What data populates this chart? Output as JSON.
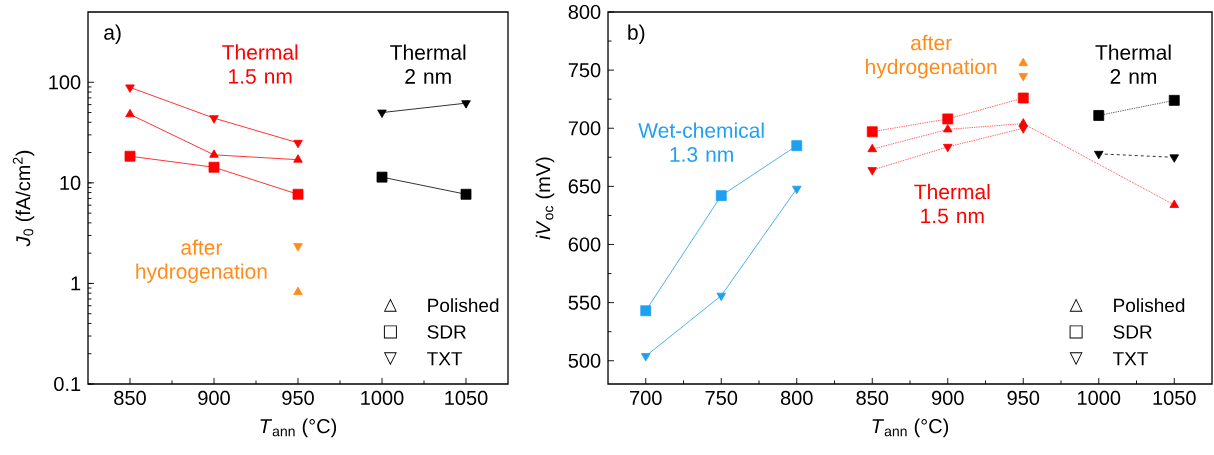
{
  "chart_data": [
    {
      "type": "line",
      "xlabel": "*T*$_{ann}$ (°C)",
      "ylabel": "*J*$_{0}$ (fA/cm$^{2}$)",
      "log": true,
      "xlim": [
        825,
        1075
      ],
      "xticks": [
        850,
        900,
        950,
        1000,
        1050
      ],
      "ylim": [
        0.1,
        500
      ],
      "yticks": [
        0.1,
        1,
        10,
        100
      ],
      "series": [
        {
          "color": "#ff0000",
          "marker": "triangle",
          "x": [
            850,
            900,
            950
          ],
          "values": [
            48,
            19,
            17
          ]
        },
        {
          "color": "#ff0000",
          "marker": "square",
          "x": [
            850,
            900,
            950
          ],
          "values": [
            18.4,
            14.3,
            7.7
          ]
        },
        {
          "color": "#ff0000",
          "marker": "triangle_down",
          "x": [
            850,
            900,
            950
          ],
          "values": [
            89,
            44,
            25
          ]
        },
        {
          "type": "scatter",
          "color": "#ff8c1a",
          "marker": "triangle_down",
          "x": [
            950
          ],
          "values": [
            2.35
          ]
        },
        {
          "type": "scatter",
          "color": "#ff8c1a",
          "marker": "triangle",
          "x": [
            950
          ],
          "values": [
            0.82
          ]
        },
        {
          "color": "#000000",
          "marker": "triangle_down",
          "x": [
            1000,
            1050
          ],
          "values": [
            50,
            62
          ]
        },
        {
          "color": "#000000",
          "marker": "square",
          "x": [
            1000,
            1050
          ],
          "values": [
            11.4,
            7.7
          ]
        }
      ],
      "annotations": [
        "a)",
        "Thermal 1.5 nm",
        "Thermal 2 nm",
        "after hydrogenation",
        "△",
        "Polished",
        "□",
        "SDR",
        "▽",
        "TXT"
      ]
    },
    {
      "type": "line",
      "xlabel": "*T*$_{ann}$ (°C)",
      "ylabel": "*iV*$_{oc}$ (mV)",
      "xlim": [
        675,
        1075
      ],
      "xticks": [
        700,
        750,
        800,
        850,
        900,
        950,
        1000,
        1050
      ],
      "ylim": [
        480,
        800
      ],
      "yticks": [
        500,
        550,
        600,
        650,
        700,
        750,
        800
      ],
      "series": [
        {
          "color": "#1ea0f0",
          "marker": "square",
          "x": [
            700,
            750,
            800
          ],
          "values": [
            543,
            642,
            685
          ]
        },
        {
          "color": "#1ea0f0",
          "marker": "triangle_down",
          "x": [
            700,
            750,
            800
          ],
          "values": [
            504,
            556,
            648
          ]
        },
        {
          "color": "#ff0000",
          "marker": "square",
          "line_style": "dotted",
          "x": [
            850,
            900,
            950
          ],
          "values": [
            697,
            708,
            726
          ]
        },
        {
          "color": "#ff0000",
          "marker": "triangle",
          "line_style": "dotted",
          "x": [
            850,
            900,
            950,
            1050
          ],
          "values": [
            682,
            699,
            704,
            634
          ]
        },
        {
          "color": "#ff0000",
          "marker": "triangle_down",
          "line_style": "dotted",
          "x": [
            850,
            900,
            950
          ],
          "values": [
            664,
            684,
            700
          ]
        },
        {
          "type": "scatter",
          "color": "#ff8c1a",
          "marker": "triangle",
          "x": [
            950
          ],
          "values": [
            756
          ]
        },
        {
          "type": "scatter",
          "color": "#ff8c1a",
          "marker": "triangle_down",
          "x": [
            950
          ],
          "values": [
            745
          ]
        },
        {
          "color": "#000000",
          "marker": "square",
          "line_style": "dotted",
          "x": [
            1000,
            1050
          ],
          "values": [
            711,
            724
          ]
        },
        {
          "color": "#000000",
          "marker": "triangle_down",
          "line_style": "dashed",
          "x": [
            1000,
            1050
          ],
          "values": [
            678,
            675
          ]
        }
      ],
      "annotations": [
        "b)",
        "Wet-chemical 1.3 nm",
        "Thermal 1.5 nm",
        "after hydrogenation",
        "Thermal 2 nm",
        "△",
        "Polished",
        "□",
        "SDR",
        "▽",
        "TXT"
      ]
    }
  ]
}
